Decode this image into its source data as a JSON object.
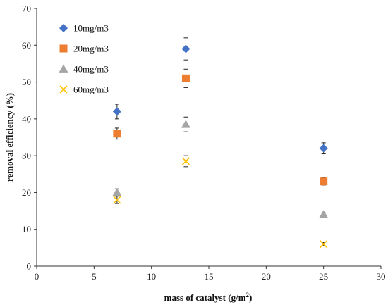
{
  "chart_data": {
    "type": "scatter",
    "title": "",
    "xlabel": "mass of catalyst (g/m",
    "xlabel_sup": "2",
    "xlabel_close": ")",
    "ylabel": "removal efficiency (%)",
    "xlim": [
      0,
      30
    ],
    "ylim": [
      0,
      70
    ],
    "xticks": [
      0,
      5,
      10,
      15,
      20,
      25,
      30
    ],
    "yticks": [
      0,
      10,
      20,
      30,
      40,
      50,
      60,
      70
    ],
    "grid": false,
    "legend_position": "top-left",
    "series": [
      {
        "name": "10mg/m3",
        "marker": "diamond",
        "color": "#4472C4",
        "x": [
          7,
          13,
          25
        ],
        "y": [
          42,
          59,
          32
        ],
        "err": [
          2,
          3,
          1.5
        ]
      },
      {
        "name": "20mg/m3",
        "marker": "square",
        "color": "#ED7D31",
        "x": [
          7,
          13,
          25
        ],
        "y": [
          36,
          51,
          23
        ],
        "err": [
          1.5,
          2.5,
          1
        ]
      },
      {
        "name": "40mg/m3",
        "marker": "triangle",
        "color": "#A5A5A5",
        "x": [
          7,
          13,
          25
        ],
        "y": [
          20,
          38.5,
          14
        ],
        "err": [
          1,
          2,
          0.5
        ]
      },
      {
        "name": "60mg/m3",
        "marker": "x",
        "color": "#FFC000",
        "x": [
          7,
          13,
          25
        ],
        "y": [
          18,
          28.5,
          6
        ],
        "err": [
          1,
          1.5,
          0.5
        ]
      }
    ]
  }
}
